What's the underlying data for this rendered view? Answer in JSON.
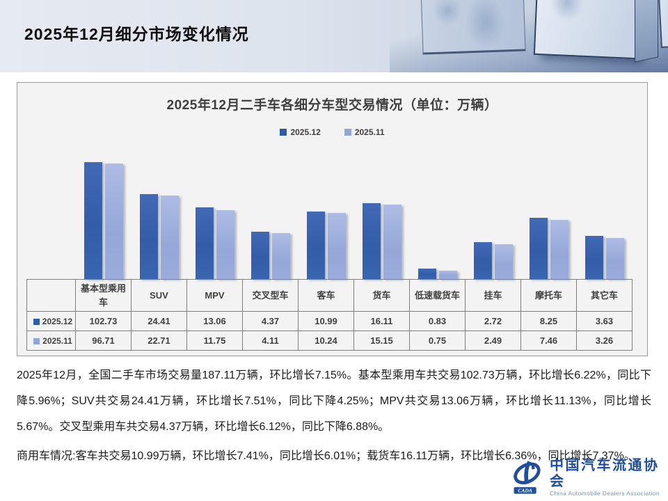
{
  "slide": {
    "title": "2025年12月细分市场变化情况"
  },
  "chart": {
    "title": "2025年12月二手车各细分车型交易情况（单位：万辆）"
  },
  "chart_data": {
    "type": "bar",
    "title": "2025年12月二手车各细分车型交易情况（单位：万辆）",
    "unit": "万辆",
    "scale": "log",
    "legend_position": "top",
    "data_table_shown": true,
    "categories": [
      "基本型乘用车",
      "SUV",
      "MPV",
      "交叉型车",
      "客车",
      "货车",
      "低速载货车",
      "挂车",
      "摩托车",
      "其它车"
    ],
    "series": [
      {
        "name": "2025.12",
        "color": "#2E5CA6",
        "values": [
          102.73,
          24.41,
          13.06,
          4.37,
          10.99,
          16.11,
          0.83,
          2.72,
          8.25,
          3.63
        ]
      },
      {
        "name": "2025.11",
        "color": "#93A7D7",
        "values": [
          96.71,
          22.71,
          11.75,
          4.11,
          10.24,
          15.15,
          0.75,
          2.49,
          7.46,
          3.26
        ]
      }
    ]
  },
  "body": {
    "paragraph1": "2025年12月，全国二手车市场交易量187.11万辆，环比增长7.15%。基本型乘用车共交易102.73万辆，环比增长6.22%，同比下降5.96%；SUV共交易24.41万辆，环比增长7.51%，同比下降4.25%；MPV共交易13.06万辆，环比增长11.13%，同比增长5.67%。交叉型乘用车共交易4.37万辆，环比增长6.12%，同比下降6.88%。",
    "paragraph2": "商用车情况:客车共交易10.99万辆，环比增长7.41%，同比增长6.01%；载货车16.11万辆，环比增长6.36%，同比增长7.37%。"
  },
  "logo": {
    "name_cn": "中国汽车流通协会",
    "name_en": "China Automobile Dealers Association",
    "abbr": "CADA",
    "color": "#1F4E9C"
  }
}
